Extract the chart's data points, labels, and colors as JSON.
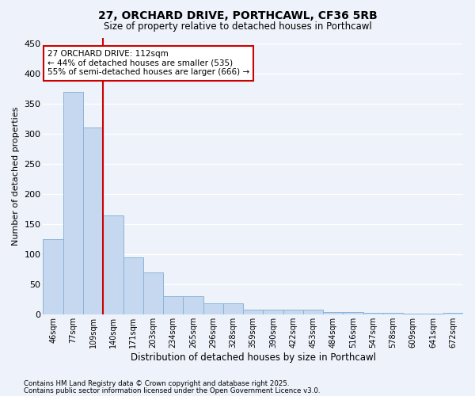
{
  "title": "27, ORCHARD DRIVE, PORTHCAWL, CF36 5RB",
  "subtitle": "Size of property relative to detached houses in Porthcawl",
  "xlabel": "Distribution of detached houses by size in Porthcawl",
  "ylabel": "Number of detached properties",
  "categories": [
    "46sqm",
    "77sqm",
    "109sqm",
    "140sqm",
    "171sqm",
    "203sqm",
    "234sqm",
    "265sqm",
    "296sqm",
    "328sqm",
    "359sqm",
    "390sqm",
    "422sqm",
    "453sqm",
    "484sqm",
    "516sqm",
    "547sqm",
    "578sqm",
    "609sqm",
    "641sqm",
    "672sqm"
  ],
  "values": [
    125,
    370,
    310,
    165,
    95,
    70,
    30,
    30,
    18,
    18,
    8,
    8,
    7,
    7,
    4,
    4,
    3,
    2,
    1,
    1,
    3
  ],
  "bar_color": "#c5d8f0",
  "bar_edge_color": "#8ab4d8",
  "vline_color": "#cc0000",
  "vline_x_idx": 2,
  "annotation_text": "27 ORCHARD DRIVE: 112sqm\n← 44% of detached houses are smaller (535)\n55% of semi-detached houses are larger (666) →",
  "annotation_box_facecolor": "#ffffff",
  "annotation_box_edgecolor": "#cc0000",
  "ylim": [
    0,
    460
  ],
  "yticks": [
    0,
    50,
    100,
    150,
    200,
    250,
    300,
    350,
    400,
    450
  ],
  "background_color": "#eef2fa",
  "grid_color": "#ffffff",
  "title_fontsize": 10,
  "subtitle_fontsize": 8.5,
  "footer1": "Contains HM Land Registry data © Crown copyright and database right 2025.",
  "footer2": "Contains public sector information licensed under the Open Government Licence v3.0."
}
